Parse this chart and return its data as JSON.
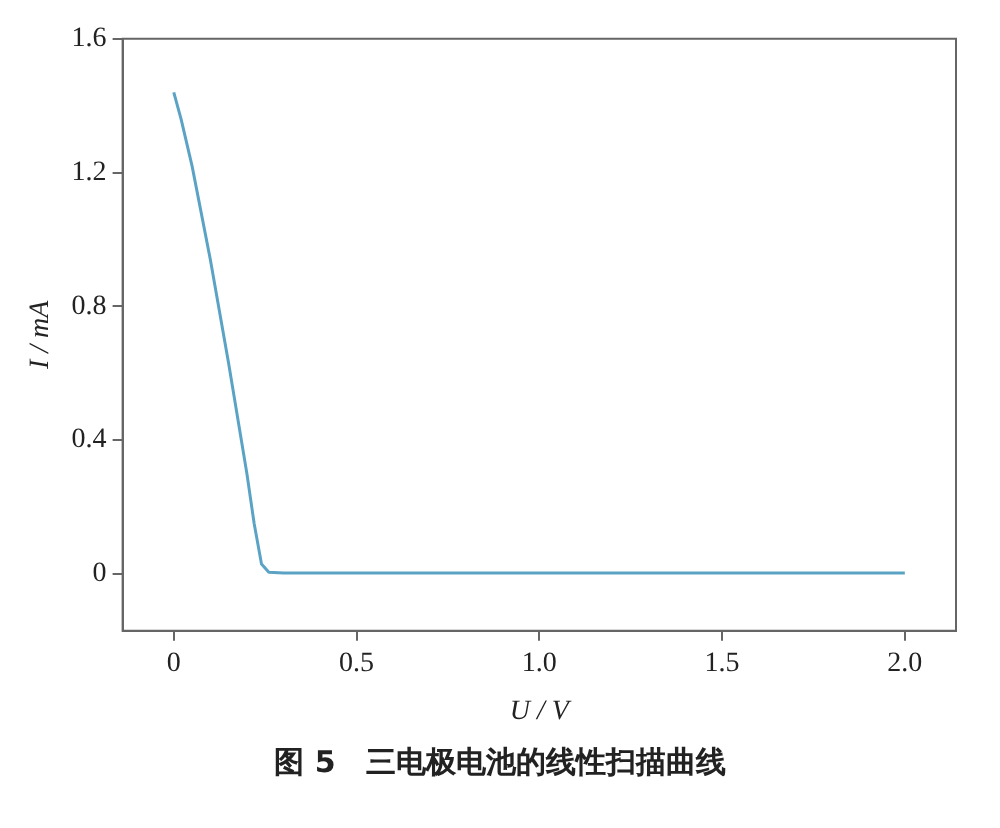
{
  "chart_data": {
    "type": "line",
    "title": "图 5　三电极电池的线性扫描曲线",
    "xlabel": "U / V",
    "ylabel": "I / mA",
    "x": [
      0,
      0.02,
      0.05,
      0.1,
      0.15,
      0.2,
      0.22,
      0.24,
      0.26,
      0.3,
      0.5,
      1.0,
      1.5,
      2.0
    ],
    "series": [
      {
        "color": "#5ba3c4",
        "values": [
          1.44,
          1.36,
          1.22,
          0.94,
          0.63,
          0.3,
          0.15,
          0.03,
          0.005,
          0.003,
          0.003,
          0.003,
          0.003,
          0.003
        ]
      }
    ],
    "xlim": [
      -0.14,
      2.14
    ],
    "xticks": [
      0,
      0.5,
      {
        "value": 1,
        "label": "1.0"
      },
      1.5,
      {
        "value": 2,
        "label": "2.0"
      }
    ],
    "ylim": [
      -0.17,
      1.6
    ],
    "yticks": [
      0,
      0.4,
      0.8,
      1.2,
      1.6
    ],
    "grid": false,
    "legend": false,
    "marker": "none",
    "line_style": "solid"
  }
}
